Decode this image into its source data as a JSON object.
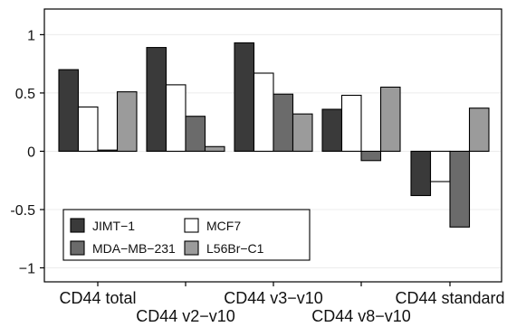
{
  "chart_data": {
    "type": "bar",
    "categories": [
      "CD44 total",
      "CD44 v2−v10",
      "CD44 v3−v10",
      "CD44 v8−v10",
      "CD44 standard"
    ],
    "series": [
      {
        "name": "JIMT−1",
        "values": [
          0.7,
          0.89,
          0.93,
          0.36,
          -0.38
        ],
        "color": "#3a3a3a"
      },
      {
        "name": "MCF7",
        "values": [
          0.38,
          0.57,
          0.67,
          0.48,
          -0.26
        ],
        "color": "#ffffff"
      },
      {
        "name": "MDA−MB−231",
        "values": [
          0.01,
          0.3,
          0.49,
          -0.08,
          -0.65
        ],
        "color": "#6b6b6b"
      },
      {
        "name": "L56Br−C1",
        "values": [
          0.51,
          0.04,
          0.32,
          0.55,
          0.37
        ],
        "color": "#9b9b9b"
      }
    ],
    "yticks": [
      -1,
      -0.5,
      0,
      0.5,
      1
    ],
    "ytick_labels": [
      "−1",
      "-0.5",
      "0",
      "0.5",
      "1"
    ],
    "ylim": [
      -1.12,
      1.22
    ],
    "grid": true,
    "legend_position": "bottom-left",
    "title": "",
    "xlabel": "",
    "ylabel": ""
  }
}
